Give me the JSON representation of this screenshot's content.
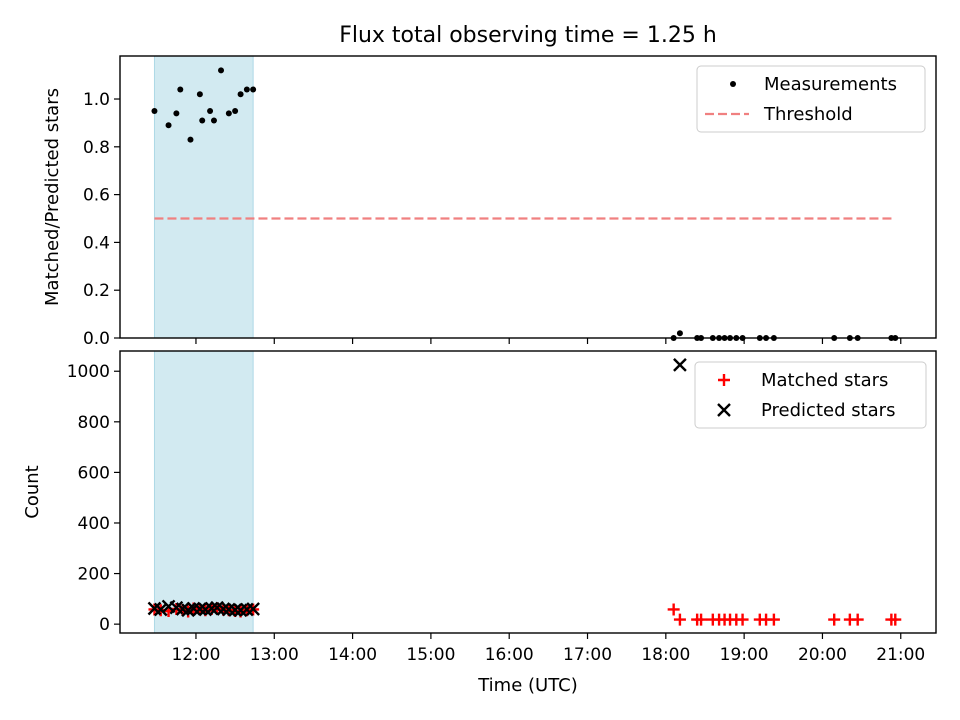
{
  "title": "Flux total observing time = 1.25 h",
  "xlabel": "Time (UTC)",
  "x_tick_labels": [
    "12:00",
    "13:00",
    "14:00",
    "15:00",
    "16:00",
    "17:00",
    "18:00",
    "19:00",
    "20:00",
    "21:00"
  ],
  "colors": {
    "measurements": "#000000",
    "threshold": "#f08080",
    "matched": "#ff0000",
    "predicted": "#000000",
    "shade": "#add8e6"
  },
  "chart_data": [
    {
      "type": "scatter",
      "ylabel": "Matched/Predicted stars",
      "xlim": [
        11.03,
        21.45
      ],
      "ylim": [
        0,
        1.18
      ],
      "y_ticks": [
        "0.0",
        "0.2",
        "0.4",
        "0.6",
        "0.8",
        "1.0"
      ],
      "legend_position": "top-right",
      "shaded_span": [
        11.47,
        12.73
      ],
      "threshold": {
        "name": "Threshold",
        "y": 0.5,
        "x_range": [
          11.47,
          20.9
        ]
      },
      "series": [
        {
          "name": "Measurements",
          "x": [
            11.47,
            11.65,
            11.75,
            11.8,
            11.93,
            12.05,
            12.08,
            12.18,
            12.23,
            12.32,
            12.42,
            12.5,
            12.57,
            12.65,
            12.73,
            18.1,
            18.18,
            18.4,
            18.45,
            18.6,
            18.68,
            18.75,
            18.82,
            18.9,
            18.98,
            19.2,
            19.28,
            19.38,
            20.15,
            20.35,
            20.45,
            20.88,
            20.93
          ],
          "y": [
            0.95,
            0.89,
            0.94,
            1.04,
            0.83,
            1.02,
            0.91,
            0.95,
            0.91,
            1.12,
            0.94,
            0.95,
            1.02,
            1.04,
            1.04,
            0.0,
            0.02,
            0.0,
            0.0,
            0.0,
            0.0,
            0.0,
            0.0,
            0.0,
            0.0,
            0.0,
            0.0,
            0.0,
            0.0,
            0.0,
            0.0,
            0.0,
            0.0
          ]
        }
      ]
    },
    {
      "type": "scatter",
      "ylabel": "Count",
      "xlim": [
        11.03,
        21.45
      ],
      "ylim": [
        -35,
        1080
      ],
      "y_ticks": [
        "0",
        "200",
        "400",
        "600",
        "800",
        "1000"
      ],
      "legend_position": "top-right",
      "shaded_span": [
        11.47,
        12.73
      ],
      "series": [
        {
          "name": "Matched stars",
          "x": [
            11.47,
            11.55,
            11.65,
            11.75,
            11.83,
            11.9,
            11.97,
            12.05,
            12.12,
            12.2,
            12.27,
            12.35,
            12.42,
            12.5,
            12.57,
            12.65,
            12.73,
            18.1,
            18.18,
            18.4,
            18.45,
            18.6,
            18.68,
            18.75,
            18.82,
            18.9,
            18.98,
            19.2,
            19.28,
            19.38,
            20.15,
            20.35,
            20.45,
            20.88,
            20.93
          ],
          "y": [
            58,
            55,
            52,
            60,
            56,
            50,
            62,
            58,
            55,
            60,
            63,
            57,
            55,
            52,
            50,
            55,
            58,
            58,
            18,
            18,
            18,
            18,
            18,
            18,
            18,
            18,
            18,
            18,
            18,
            18,
            18,
            18,
            18,
            18,
            18
          ]
        },
        {
          "name": "Predicted stars",
          "x": [
            11.47,
            11.55,
            11.65,
            11.75,
            11.83,
            11.9,
            11.97,
            12.05,
            12.12,
            12.2,
            12.27,
            12.35,
            12.42,
            12.5,
            12.57,
            12.65,
            12.73,
            18.18
          ],
          "y": [
            62,
            58,
            70,
            65,
            60,
            55,
            62,
            60,
            58,
            62,
            65,
            60,
            58,
            56,
            55,
            58,
            60,
            1025
          ]
        }
      ]
    }
  ]
}
